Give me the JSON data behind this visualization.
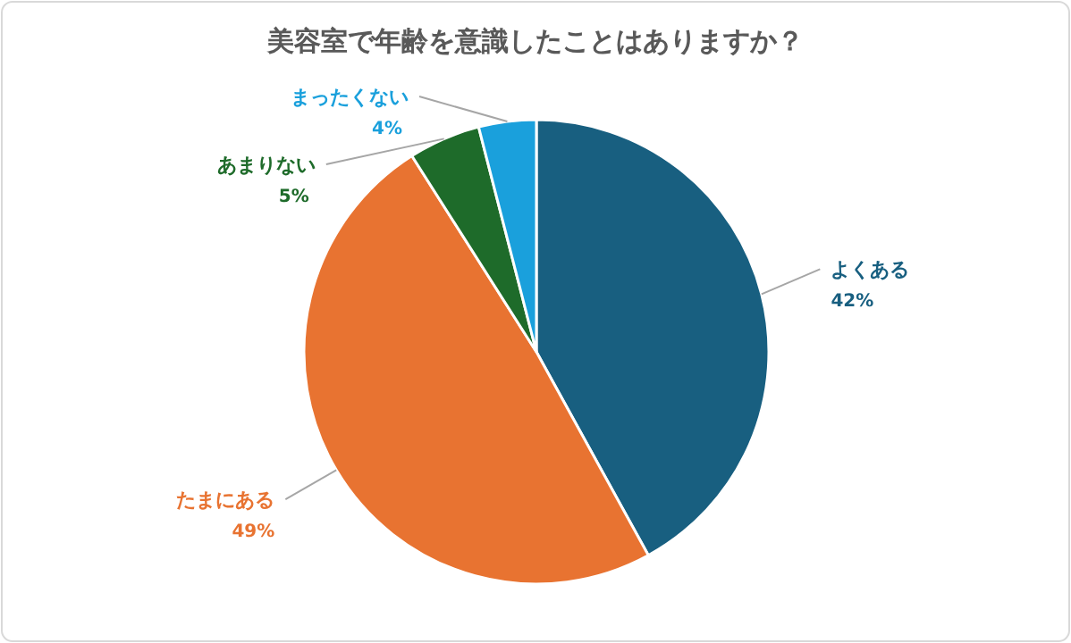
{
  "chart_data": {
    "type": "pie",
    "title": "美容室で年齢を意識したことはありますか？",
    "categories": [
      "よくある",
      "たまにある",
      "あまりない",
      "まったくない"
    ],
    "values": [
      42,
      49,
      5,
      4
    ],
    "value_labels": [
      "42%",
      "49%",
      "5%",
      "4%"
    ],
    "colors": [
      "#185f80",
      "#e87331",
      "#1e6b2a",
      "#1aa0dc"
    ],
    "legend": false
  }
}
